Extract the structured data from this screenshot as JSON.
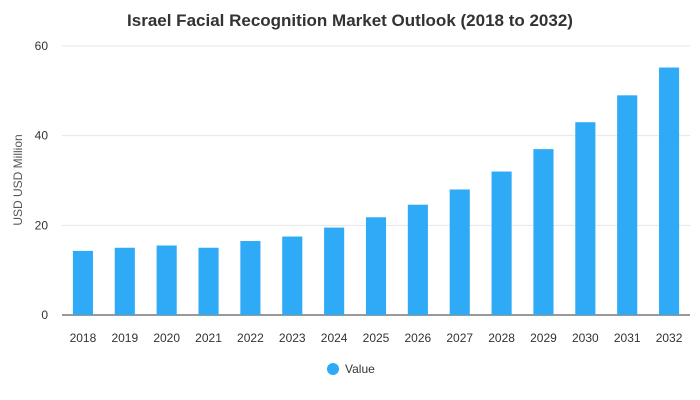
{
  "chart_data": {
    "type": "bar",
    "title": "Israel Facial Recognition Market Outlook (2018 to 2032)",
    "xlabel": "",
    "ylabel": "USD USD Million",
    "categories": [
      "2018",
      "2019",
      "2020",
      "2021",
      "2022",
      "2023",
      "2024",
      "2025",
      "2026",
      "2027",
      "2028",
      "2029",
      "2030",
      "2031",
      "2032"
    ],
    "series": [
      {
        "name": "Value",
        "color": "#2eaaf7",
        "values": [
          14.3,
          15.0,
          15.5,
          15.0,
          16.5,
          17.5,
          19.5,
          21.8,
          24.6,
          28.0,
          32.0,
          37.0,
          43.0,
          49.0,
          55.2
        ]
      }
    ],
    "ylim": [
      0,
      60
    ],
    "yticks": [
      0,
      20,
      40,
      60
    ],
    "grid": true,
    "legend_position": "bottom-center"
  }
}
